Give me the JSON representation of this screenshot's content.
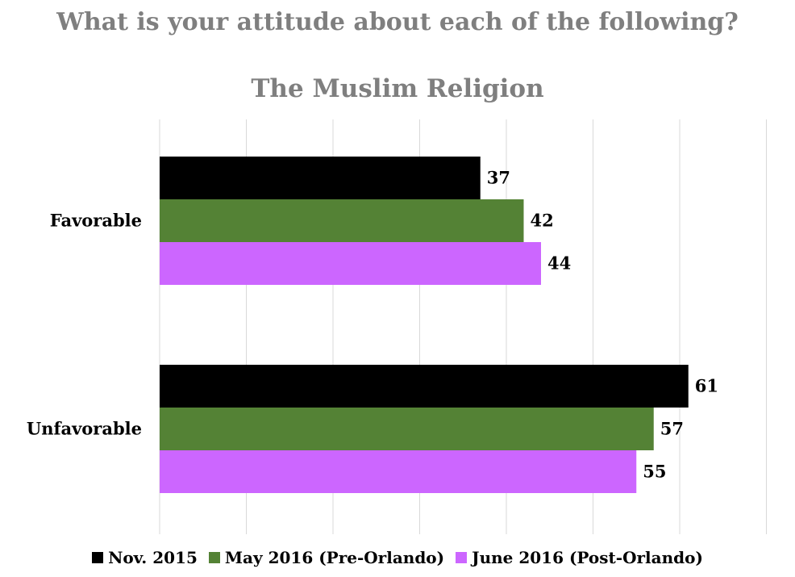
{
  "chart_data": {
    "type": "bar",
    "orientation": "horizontal",
    "title": "What is your attitude about each of the following?",
    "subtitle": "The Muslim Religion",
    "categories": [
      "Favorable",
      "Unfavorable"
    ],
    "series": [
      {
        "name": "Nov. 2015",
        "color": "#000000",
        "values": [
          37,
          61
        ]
      },
      {
        "name": "May 2016 (Pre-Orlando)",
        "color": "#548235",
        "values": [
          42,
          57
        ]
      },
      {
        "name": "June 2016 (Post-Orlando)",
        "color": "#cc66ff",
        "values": [
          44,
          55
        ]
      }
    ],
    "xlim": [
      0,
      70
    ],
    "x_grid_step": 10,
    "grid": true,
    "legend_position": "bottom"
  }
}
